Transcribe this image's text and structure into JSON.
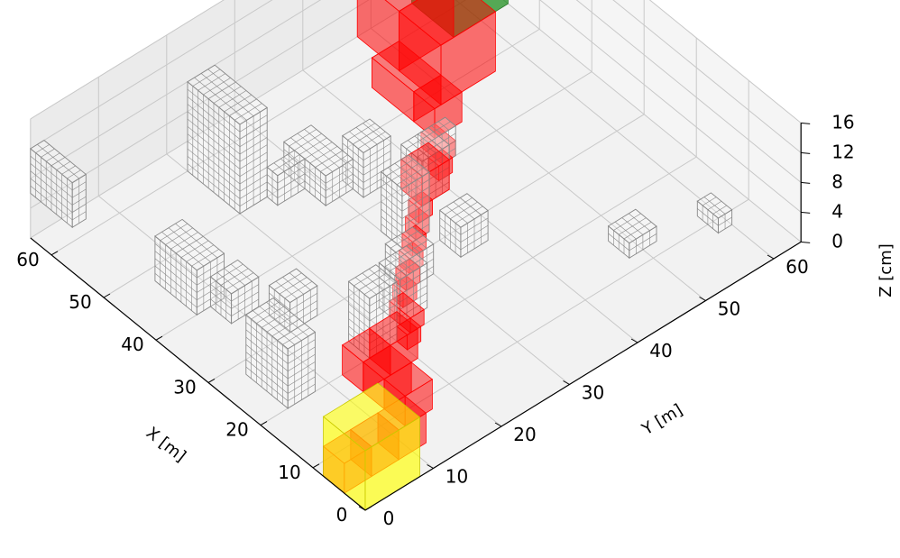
{
  "chart_data": {
    "type": "voxel-3d",
    "xlabel": "X [m]",
    "ylabel": "Y [m]",
    "zlabel": "Z [cm]",
    "xlim": [
      0,
      64
    ],
    "ylim": [
      0,
      64
    ],
    "zlim": [
      0,
      16
    ],
    "xticks": [
      "0",
      "10",
      "20",
      "30",
      "40",
      "50",
      "60"
    ],
    "yticks": [
      "0",
      "10",
      "20",
      "30",
      "40",
      "50",
      "60"
    ],
    "zticks": [
      "0",
      "4",
      "8",
      "12",
      "16"
    ],
    "grid": true,
    "colors": {
      "path": "#ff0000",
      "start": "#008000",
      "goal": "#ffff00",
      "obstacle": "#888888",
      "pane": "#f2f2f2",
      "grid": "#c8c8c8"
    },
    "start_box": {
      "x": [
        56,
        64
      ],
      "y": [
        56,
        64
      ],
      "z": [
        0,
        8
      ]
    },
    "goal_box": {
      "x": [
        0,
        8
      ],
      "y": [
        0,
        8
      ],
      "z": [
        0,
        8
      ]
    },
    "path_boxes": [
      {
        "x": [
          56,
          64
        ],
        "y": [
          48,
          56
        ],
        "z": [
          0,
          8
        ]
      },
      {
        "x": [
          48,
          56
        ],
        "y": [
          48,
          56
        ],
        "z": [
          0,
          8
        ]
      },
      {
        "x": [
          48,
          56
        ],
        "y": [
          44,
          48
        ],
        "z": [
          0,
          4
        ]
      },
      {
        "x": [
          44,
          48
        ],
        "y": [
          44,
          48
        ],
        "z": [
          0,
          4
        ]
      },
      {
        "x": [
          40,
          44
        ],
        "y": [
          42,
          44
        ],
        "z": [
          0,
          2
        ]
      },
      {
        "x": [
          38,
          40
        ],
        "y": [
          40,
          42
        ],
        "z": [
          0,
          2
        ]
      },
      {
        "x": [
          36,
          40
        ],
        "y": [
          36,
          40
        ],
        "z": [
          0,
          4
        ]
      },
      {
        "x": [
          34,
          36
        ],
        "y": [
          34,
          36
        ],
        "z": [
          0,
          2
        ]
      },
      {
        "x": [
          32,
          34
        ],
        "y": [
          32,
          34
        ],
        "z": [
          0,
          2
        ]
      },
      {
        "x": [
          30,
          32
        ],
        "y": [
          30,
          32
        ],
        "z": [
          0,
          2
        ]
      },
      {
        "x": [
          28,
          30
        ],
        "y": [
          28,
          30
        ],
        "z": [
          0,
          2
        ]
      },
      {
        "x": [
          26,
          28
        ],
        "y": [
          26,
          28
        ],
        "z": [
          0,
          2
        ]
      },
      {
        "x": [
          24,
          26
        ],
        "y": [
          24,
          26
        ],
        "z": [
          0,
          2
        ]
      },
      {
        "x": [
          20,
          24
        ],
        "y": [
          22,
          24
        ],
        "z": [
          0,
          2
        ]
      },
      {
        "x": [
          18,
          20
        ],
        "y": [
          20,
          22
        ],
        "z": [
          0,
          2
        ]
      },
      {
        "x": [
          16,
          20
        ],
        "y": [
          16,
          20
        ],
        "z": [
          0,
          4
        ]
      },
      {
        "x": [
          16,
          20
        ],
        "y": [
          12,
          16
        ],
        "z": [
          0,
          4
        ]
      },
      {
        "x": [
          12,
          16
        ],
        "y": [
          12,
          16
        ],
        "z": [
          0,
          4
        ]
      },
      {
        "x": [
          8,
          12
        ],
        "y": [
          12,
          16
        ],
        "z": [
          0,
          4
        ]
      },
      {
        "x": [
          4,
          8
        ],
        "y": [
          8,
          12
        ],
        "z": [
          0,
          4
        ]
      },
      {
        "x": [
          4,
          8
        ],
        "y": [
          4,
          8
        ],
        "z": [
          0,
          4
        ]
      },
      {
        "x": [
          4,
          8
        ],
        "y": [
          0,
          4
        ],
        "z": [
          0,
          4
        ]
      }
    ],
    "obstacles": [
      {
        "x": [
          56,
          64
        ],
        "y": [
          0,
          2
        ],
        "z": [
          6,
          12
        ]
      },
      {
        "x": [
          50,
          60
        ],
        "y": [
          20,
          24
        ],
        "z": [
          0,
          12
        ]
      },
      {
        "x": [
          40,
          48
        ],
        "y": [
          6,
          10
        ],
        "z": [
          0,
          6
        ]
      },
      {
        "x": [
          36,
          40
        ],
        "y": [
          8,
          12
        ],
        "z": [
          0,
          4
        ]
      },
      {
        "x": [
          30,
          34
        ],
        "y": [
          12,
          16
        ],
        "z": [
          0,
          4
        ]
      },
      {
        "x": [
          26,
          30
        ],
        "y": [
          26,
          30
        ],
        "z": [
          0,
          4
        ]
      },
      {
        "x": [
          22,
          26
        ],
        "y": [
          22,
          26
        ],
        "z": [
          0,
          6
        ]
      },
      {
        "x": [
          20,
          24
        ],
        "y": [
          16,
          20
        ],
        "z": [
          0,
          8
        ]
      },
      {
        "x": [
          20,
          28
        ],
        "y": [
          4,
          8
        ],
        "z": [
          0,
          8
        ]
      },
      {
        "x": [
          32,
          36
        ],
        "y": [
          30,
          34
        ],
        "z": [
          0,
          8
        ]
      },
      {
        "x": [
          36,
          40
        ],
        "y": [
          36,
          40
        ],
        "z": [
          0,
          6
        ]
      },
      {
        "x": [
          26,
          30
        ],
        "y": [
          34,
          38
        ],
        "z": [
          0,
          4
        ]
      },
      {
        "x": [
          40,
          42
        ],
        "y": [
          40,
          44
        ],
        "z": [
          0,
          4
        ]
      },
      {
        "x": [
          44,
          52
        ],
        "y": [
          28,
          32
        ],
        "z": [
          0,
          4
        ]
      },
      {
        "x": [
          42,
          46
        ],
        "y": [
          32,
          36
        ],
        "z": [
          0,
          6
        ]
      },
      {
        "x": [
          12,
          16
        ],
        "y": [
          48,
          52
        ],
        "z": [
          0,
          2
        ]
      },
      {
        "x": [
          8,
          12
        ],
        "y": [
          58,
          60
        ],
        "z": [
          0,
          2
        ]
      },
      {
        "x": [
          48,
          50
        ],
        "y": [
          24,
          28
        ],
        "z": [
          0,
          4
        ]
      }
    ]
  }
}
